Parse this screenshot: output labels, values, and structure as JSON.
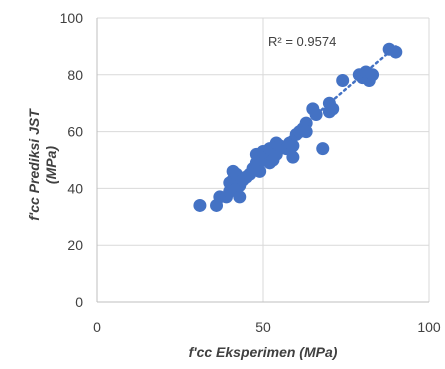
{
  "chart_data": {
    "type": "scatter",
    "xlabel": "f'cc Eksperimen (MPa)",
    "ylabel_line1": "f'cc Prediksi JST",
    "ylabel_line2": "(MPa)",
    "annotation": "R² = 0.9574",
    "xlim": [
      0,
      100
    ],
    "ylim": [
      0,
      100
    ],
    "x_ticks": [
      0,
      50,
      100
    ],
    "y_ticks": [
      0,
      20,
      40,
      60,
      80,
      100
    ],
    "x_tick_labels": [
      "0",
      "50",
      "100"
    ],
    "y_tick_labels": [
      "0",
      "20",
      "40",
      "60",
      "80",
      "100"
    ],
    "grid": true,
    "series_color": "#4472C4",
    "gridline_color": "#d9d9d9",
    "trendline": {
      "style": "dotted",
      "from": [
        36,
        36
      ],
      "to": [
        90,
        90
      ]
    },
    "points": [
      [
        31,
        34
      ],
      [
        36,
        34
      ],
      [
        37,
        37
      ],
      [
        39,
        37
      ],
      [
        40,
        39
      ],
      [
        40,
        42
      ],
      [
        41,
        46
      ],
      [
        41,
        43
      ],
      [
        42,
        40
      ],
      [
        42,
        45
      ],
      [
        43,
        41
      ],
      [
        43,
        37
      ],
      [
        44,
        43
      ],
      [
        45,
        44
      ],
      [
        46,
        45
      ],
      [
        47,
        47
      ],
      [
        48,
        49
      ],
      [
        48,
        52
      ],
      [
        49,
        46
      ],
      [
        50,
        50
      ],
      [
        50,
        53
      ],
      [
        51,
        51
      ],
      [
        52,
        54
      ],
      [
        52,
        49
      ],
      [
        53,
        50
      ],
      [
        54,
        52
      ],
      [
        54,
        56
      ],
      [
        55,
        55
      ],
      [
        57,
        54
      ],
      [
        58,
        56
      ],
      [
        59,
        51
      ],
      [
        59,
        55
      ],
      [
        60,
        59
      ],
      [
        61,
        60
      ],
      [
        62,
        61
      ],
      [
        63,
        63
      ],
      [
        63,
        60
      ],
      [
        65,
        68
      ],
      [
        66,
        66
      ],
      [
        68,
        54
      ],
      [
        70,
        67
      ],
      [
        70,
        70
      ],
      [
        71,
        68
      ],
      [
        74,
        78
      ],
      [
        79,
        80
      ],
      [
        80,
        79
      ],
      [
        81,
        81
      ],
      [
        82,
        78
      ],
      [
        83,
        80
      ],
      [
        88,
        89
      ],
      [
        90,
        88
      ]
    ]
  }
}
